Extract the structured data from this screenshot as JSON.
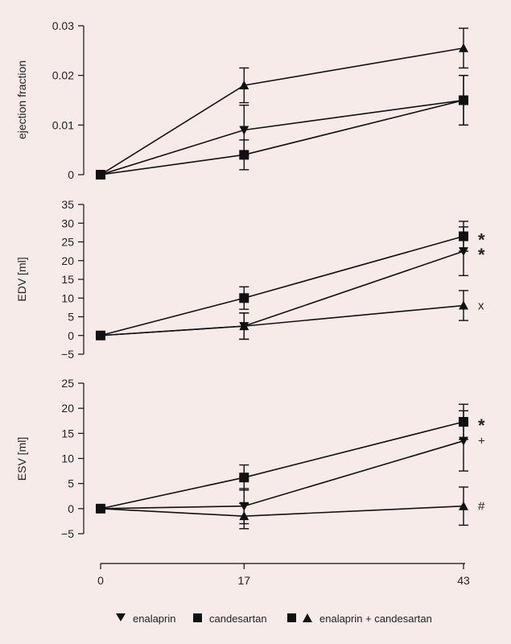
{
  "chart_data": [
    {
      "type": "line",
      "ylabel": "ejection fraction",
      "ylim": [
        0,
        0.03
      ],
      "yticks": [
        0,
        0.01,
        0.02,
        0.03
      ],
      "ytick_labels": [
        "0",
        "0.01",
        "0.02",
        "0.03"
      ],
      "x": [
        0,
        17,
        43
      ],
      "series": [
        {
          "name": "enalaprin",
          "marker": "triangle-down",
          "values": [
            0,
            0.009,
            0.015
          ],
          "errors": [
            0,
            0.005,
            0.005
          ]
        },
        {
          "name": "candesartan",
          "marker": "square",
          "values": [
            0,
            0.004,
            0.015
          ],
          "errors": [
            0,
            0.003,
            0.005
          ]
        },
        {
          "name": "enalaprin + candesartan",
          "marker": "triangle-up",
          "values": [
            0,
            0.018,
            0.0255
          ],
          "errors": [
            0,
            0.0035,
            0.004
          ]
        }
      ],
      "annotations": []
    },
    {
      "type": "line",
      "ylabel": "EDV [ml]",
      "ylim": [
        -5,
        35
      ],
      "yticks": [
        -5,
        0,
        5,
        10,
        15,
        20,
        25,
        30,
        35
      ],
      "ytick_labels": [
        "−5",
        "0",
        "5",
        "10",
        "15",
        "20",
        "25",
        "30",
        "35"
      ],
      "x": [
        0,
        17,
        43
      ],
      "series": [
        {
          "name": "enalaprin",
          "marker": "triangle-down",
          "values": [
            0,
            2.5,
            22.5
          ],
          "errors": [
            0,
            3.5,
            6.5
          ]
        },
        {
          "name": "candesartan",
          "marker": "square",
          "values": [
            0,
            10,
            26.5
          ],
          "errors": [
            0,
            3,
            4
          ]
        },
        {
          "name": "enalaprin + candesartan",
          "marker": "triangle-up",
          "values": [
            0,
            2.5,
            8
          ],
          "errors": [
            0,
            3.5,
            4
          ]
        }
      ],
      "annotations": [
        {
          "text": "*",
          "series": "candesartan"
        },
        {
          "text": "*",
          "series": "enalaprin"
        },
        {
          "text": "x",
          "series": "enalaprin + candesartan"
        }
      ]
    },
    {
      "type": "line",
      "ylabel": "ESV [ml]",
      "ylim": [
        -5,
        25
      ],
      "yticks": [
        -5,
        0,
        5,
        10,
        15,
        20,
        25
      ],
      "ytick_labels": [
        "−5",
        "0",
        "5",
        "10",
        "15",
        "20",
        "25"
      ],
      "x": [
        0,
        17,
        43
      ],
      "xticks": [
        0,
        17,
        43
      ],
      "xtick_labels": [
        "0",
        "17",
        "43"
      ],
      "series": [
        {
          "name": "enalaprin",
          "marker": "triangle-down",
          "values": [
            0,
            0.5,
            13.5
          ],
          "errors": [
            0,
            3.5,
            6
          ]
        },
        {
          "name": "candesartan",
          "marker": "square",
          "values": [
            0,
            6.2,
            17.3
          ],
          "errors": [
            0,
            2.5,
            3.5
          ]
        },
        {
          "name": "enalaprin + candesartan",
          "marker": "triangle-up",
          "values": [
            0,
            -1.5,
            0.5
          ],
          "errors": [
            0,
            2.5,
            3.8
          ]
        }
      ],
      "annotations": [
        {
          "text": "*",
          "series": "candesartan"
        },
        {
          "text": "+",
          "series": "enalaprin"
        },
        {
          "text": "#",
          "series": "enalaprin + candesartan"
        }
      ]
    }
  ],
  "legend": [
    {
      "marker": "triangle-down",
      "label": "enalaprin"
    },
    {
      "marker": "square",
      "label": "candesartan"
    },
    {
      "marker": "square+triangle-up",
      "label": "enalaprin + candesartan"
    }
  ],
  "colors": {
    "background": "#f7ebea",
    "ink": "#111111"
  }
}
